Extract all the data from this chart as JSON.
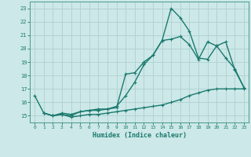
{
  "line1": {
    "x": [
      0,
      1,
      2,
      3,
      4,
      5,
      6,
      7,
      8,
      9,
      10,
      11,
      12,
      13,
      14,
      15,
      16,
      17,
      18,
      19,
      20,
      21,
      22,
      23
    ],
    "y": [
      16.5,
      15.2,
      15.0,
      15.1,
      14.9,
      15.0,
      15.1,
      15.1,
      15.2,
      15.3,
      15.4,
      15.5,
      15.6,
      15.7,
      15.8,
      16.0,
      16.2,
      16.5,
      16.7,
      16.9,
      17.0,
      17.0,
      17.0,
      17.0
    ]
  },
  "line2": {
    "x": [
      1,
      2,
      3,
      4,
      5,
      6,
      7,
      8,
      9,
      10,
      11,
      12,
      13,
      14,
      15,
      16,
      17,
      18,
      19,
      20,
      21,
      22,
      23
    ],
    "y": [
      15.2,
      15.0,
      15.2,
      15.1,
      15.3,
      15.4,
      15.4,
      15.5,
      15.6,
      18.1,
      18.2,
      19.0,
      19.5,
      20.6,
      23.0,
      22.3,
      21.3,
      19.3,
      19.2,
      20.2,
      20.5,
      18.4,
      17.1
    ]
  },
  "line3": {
    "x": [
      1,
      2,
      3,
      4,
      5,
      6,
      7,
      8,
      9,
      10,
      11,
      12,
      13,
      14,
      15,
      16,
      17,
      18,
      19,
      20,
      21,
      22,
      23
    ],
    "y": [
      15.2,
      15.0,
      15.1,
      15.0,
      15.3,
      15.4,
      15.5,
      15.5,
      15.7,
      16.5,
      17.5,
      18.8,
      19.5,
      20.6,
      20.7,
      20.9,
      20.3,
      19.2,
      20.5,
      20.2,
      19.3,
      18.5,
      17.1
    ]
  },
  "xlim": [
    -0.5,
    23.5
  ],
  "ylim": [
    14.5,
    23.5
  ],
  "yticks": [
    15,
    16,
    17,
    18,
    19,
    20,
    21,
    22,
    23
  ],
  "xticks": [
    0,
    1,
    2,
    3,
    4,
    5,
    6,
    7,
    8,
    9,
    10,
    11,
    12,
    13,
    14,
    15,
    16,
    17,
    18,
    19,
    20,
    21,
    22,
    23
  ],
  "xlabel": "Humidex (Indice chaleur)",
  "bg_color": "#cce8e8",
  "grid_color": "#b0d0d0",
  "line_color": "#1a7a6e",
  "tick_color": "#1a7a6e",
  "label_color": "#1a7a6e",
  "axis_color": "#4a9a8e",
  "linewidth": 1.0,
  "markersize": 3.0,
  "markeredgewidth": 0.8
}
